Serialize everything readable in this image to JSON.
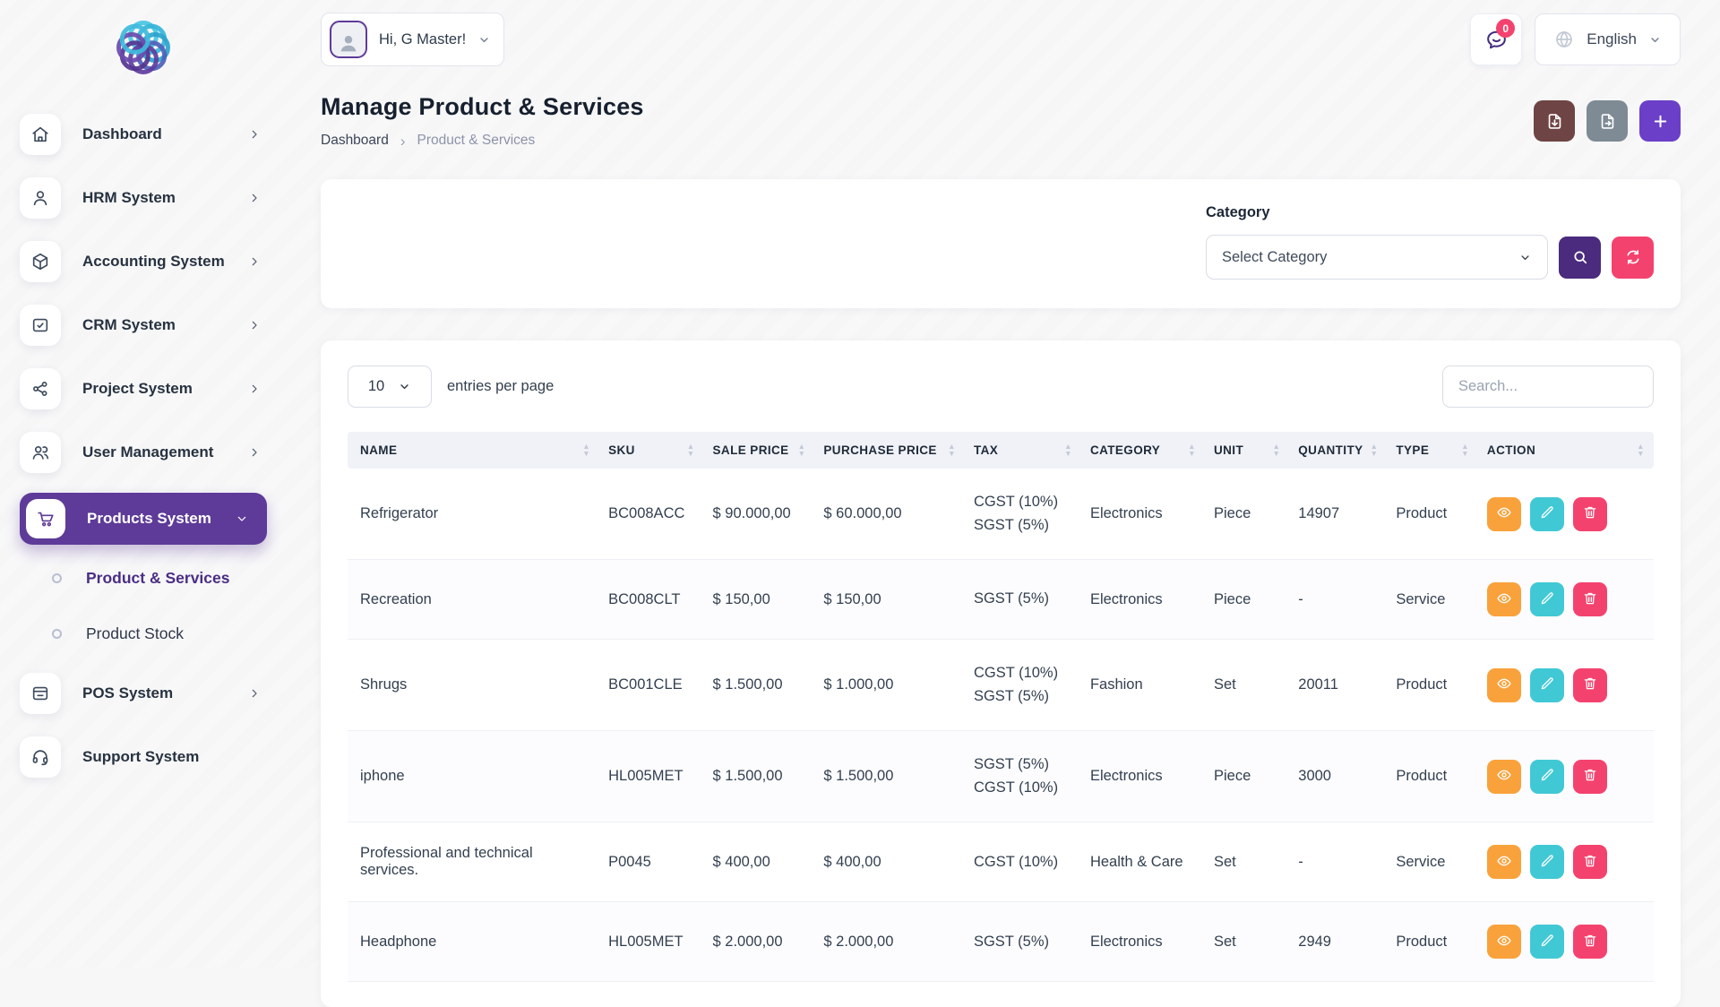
{
  "brand": {
    "logo": "flower-spiral-logo",
    "logo_colors": [
      "#48C6E3",
      "#35B5D9",
      "#2BA3CD",
      "#4E61B8",
      "#5E3D9E",
      "#55348F",
      "#6A4AAD",
      "#3FBBDC"
    ]
  },
  "sidebar": {
    "items": [
      {
        "label": "Dashboard",
        "icon": "home",
        "chevron": "right"
      },
      {
        "label": "HRM System",
        "icon": "user",
        "chevron": "right"
      },
      {
        "label": "Accounting System",
        "icon": "cube",
        "chevron": "right"
      },
      {
        "label": "CRM System",
        "icon": "crm",
        "chevron": "right"
      },
      {
        "label": "Project System",
        "icon": "share",
        "chevron": "right"
      },
      {
        "label": "User Management",
        "icon": "users",
        "chevron": "right"
      },
      {
        "label": "Products System",
        "icon": "cart",
        "chevron": "down",
        "active": true,
        "children": [
          {
            "label": "Product & Services",
            "active": true
          },
          {
            "label": "Product Stock",
            "active": false
          }
        ]
      },
      {
        "label": "POS System",
        "icon": "pos",
        "chevron": "right"
      },
      {
        "label": "Support System",
        "icon": "headset",
        "chevron": "none"
      }
    ]
  },
  "topbar": {
    "greeting": "Hi, G Master!",
    "avatar_icon": "person",
    "notification_icon": "chat-bubble",
    "notification_count": "0",
    "language_icon": "globe",
    "language": "English"
  },
  "page": {
    "title": "Manage Product & Services",
    "breadcrumb_home": "Dashboard",
    "breadcrumb_current": "Product & Services",
    "header_buttons": [
      {
        "name": "import",
        "icon": "file-import",
        "color": "#6F4444"
      },
      {
        "name": "export",
        "icon": "file-export",
        "color": "#7E8A94"
      },
      {
        "name": "create",
        "icon": "plus",
        "color": "#6B3FC8"
      }
    ]
  },
  "filter": {
    "category_label": "Category",
    "category_value": "Select Category",
    "search_button_icon": "search",
    "search_button_color": "#4A2B7E",
    "reset_button_icon": "refresh",
    "reset_button_color": "#F4426E"
  },
  "controls": {
    "entries_value": "10",
    "entries_label": "entries per page",
    "search_placeholder": "Search..."
  },
  "table": {
    "columns": [
      {
        "key": "name",
        "label": "NAME"
      },
      {
        "key": "sku",
        "label": "SKU"
      },
      {
        "key": "sale_price",
        "label": "SALE PRICE"
      },
      {
        "key": "purchase_price",
        "label": "PURCHASE PRICE"
      },
      {
        "key": "tax",
        "label": "TAX"
      },
      {
        "key": "category",
        "label": "CATEGORY"
      },
      {
        "key": "unit",
        "label": "UNIT"
      },
      {
        "key": "quantity",
        "label": "QUANTITY"
      },
      {
        "key": "type",
        "label": "TYPE"
      },
      {
        "key": "action",
        "label": "ACTION"
      }
    ],
    "rows": [
      {
        "name": "Refrigerator",
        "sku": "BC008ACC",
        "sale_price": "$ 90.000,00",
        "purchase_price": "$ 60.000,00",
        "tax": [
          "CGST (10%)",
          "SGST (5%)"
        ],
        "category": "Electronics",
        "unit": "Piece",
        "quantity": "14907",
        "type": "Product"
      },
      {
        "name": "Recreation",
        "sku": "BC008CLT",
        "sale_price": "$ 150,00",
        "purchase_price": "$ 150,00",
        "tax": [
          "SGST (5%)"
        ],
        "category": "Electronics",
        "unit": "Piece",
        "quantity": "-",
        "type": "Service"
      },
      {
        "name": "Shrugs",
        "sku": "BC001CLE",
        "sale_price": "$ 1.500,00",
        "purchase_price": "$ 1.000,00",
        "tax": [
          "CGST (10%)",
          "SGST (5%)"
        ],
        "category": "Fashion",
        "unit": "Set",
        "quantity": "20011",
        "type": "Product"
      },
      {
        "name": "iphone",
        "sku": "HL005MET",
        "sale_price": "$ 1.500,00",
        "purchase_price": "$ 1.500,00",
        "tax": [
          "SGST (5%)",
          "CGST (10%)"
        ],
        "category": "Electronics",
        "unit": "Piece",
        "quantity": "3000",
        "type": "Product"
      },
      {
        "name": "Professional and technical services.",
        "sku": "P0045",
        "sale_price": "$ 400,00",
        "purchase_price": "$ 400,00",
        "tax": [
          "CGST (10%)"
        ],
        "category": "Health & Care",
        "unit": "Set",
        "quantity": "-",
        "type": "Service"
      },
      {
        "name": "Headphone",
        "sku": "HL005MET",
        "sale_price": "$ 2.000,00",
        "purchase_price": "$ 2.000,00",
        "tax": [
          "SGST (5%)"
        ],
        "category": "Electronics",
        "unit": "Set",
        "quantity": "2949",
        "type": "Product"
      }
    ],
    "row_actions": [
      {
        "name": "view",
        "icon": "eye",
        "color": "#F9A23C"
      },
      {
        "name": "edit",
        "icon": "pencil",
        "color": "#41C8D5"
      },
      {
        "name": "delete",
        "icon": "trash",
        "color": "#F4426E"
      }
    ]
  },
  "colors": {
    "accent_purple": "#5E3B98",
    "sub_active_purple": "#4B2E83",
    "pink": "#F4426E",
    "orange": "#F9A23C",
    "teal": "#41C8D5",
    "table_header_bg": "#F0F2F8"
  }
}
